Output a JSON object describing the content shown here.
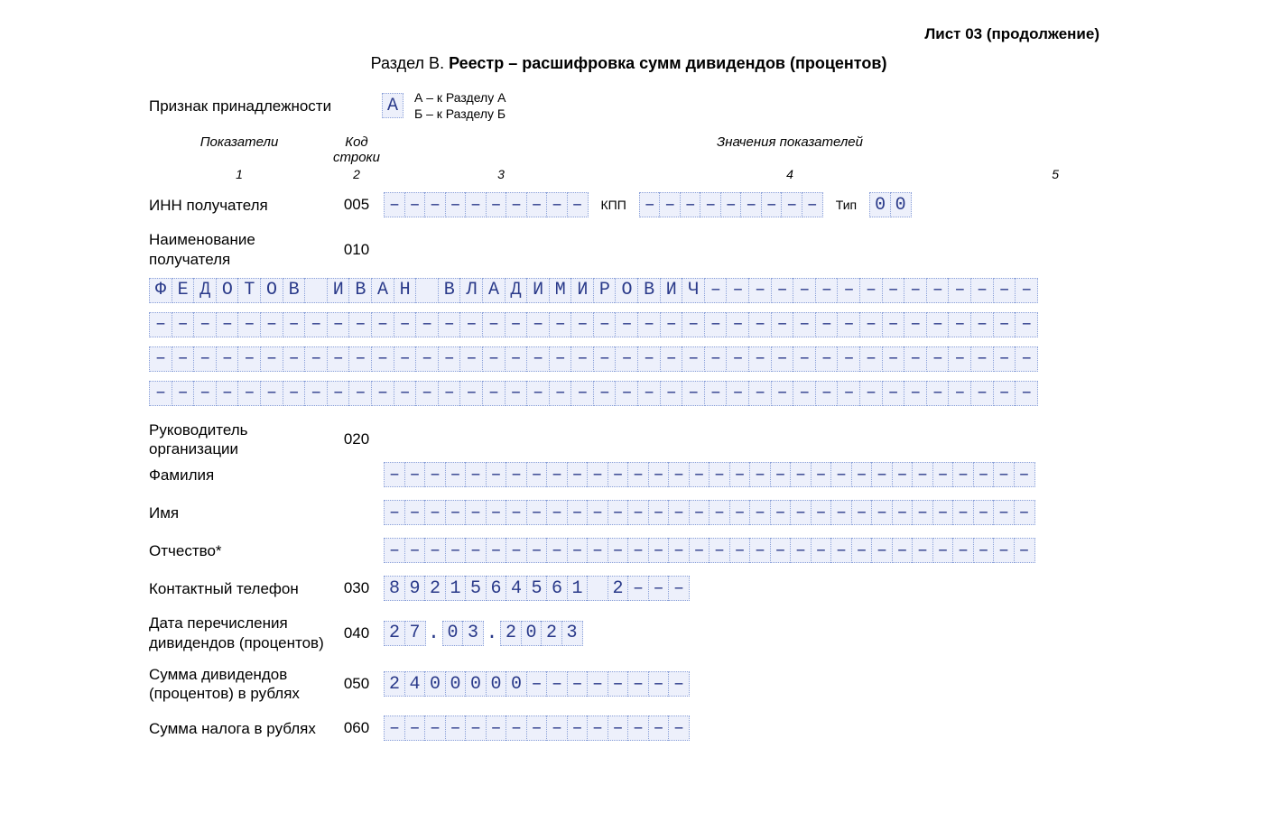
{
  "header": {
    "top_right": "Лист 03 (продолжение)"
  },
  "title": {
    "prefix": "Раздел В. ",
    "main": "Реестр – расшифровка сумм дивидендов (процентов)"
  },
  "belong": {
    "label": "Признак принадлежности",
    "value": "А",
    "legend1": "А – к Разделу А",
    "legend2": "Б – к Разделу Б"
  },
  "cols": {
    "c1": "Показатели",
    "c2": "Код строки",
    "c3": "Значения показателей",
    "n1": "1",
    "n2": "2",
    "n3": "3",
    "n4": "4",
    "n5": "5"
  },
  "r005": {
    "label": "ИНН получателя",
    "code": "005",
    "inn": "––––––––––",
    "kpp_label": "КПП",
    "kpp": "–––––––––",
    "type_label": "Тип",
    "type": "00"
  },
  "r010": {
    "label": "Наименование получателя",
    "code": "010",
    "line1": "ФЕДОТОВ ИВАН ВЛАДИМИРОВИЧ–––––––––––––––",
    "line2": "––––––––––––––––––––––––––––––––––––––––",
    "line3": "––––––––––––––––––––––––––––––––––––––––",
    "line4": "––––––––––––––––––––––––––––––––––––––––"
  },
  "r020": {
    "label": "Руководитель организации",
    "code": "020",
    "fam_label": "Фамилия",
    "fam": "––––––––––––––––––––––––––––––––",
    "name_label": "Имя",
    "name": "––––––––––––––––––––––––––––––––",
    "patr_label": "Отчество*",
    "patr": "––––––––––––––––––––––––––––––––"
  },
  "r030": {
    "label": "Контактный телефон",
    "code": "030",
    "val": "8921564561 2––––"
  },
  "r040": {
    "label": "Дата перечисления дивидендов (процентов)",
    "code": "040",
    "dd": "27",
    "mm": "03",
    "yy": "2023",
    "dot": "."
  },
  "r050": {
    "label": "Сумма дивидендов (процентов) в рублях",
    "code": "050",
    "val": "2400000––––––––"
  },
  "r060": {
    "label": "Сумма налога в рублях",
    "code": "060",
    "val": "–––––––––––––––"
  }
}
